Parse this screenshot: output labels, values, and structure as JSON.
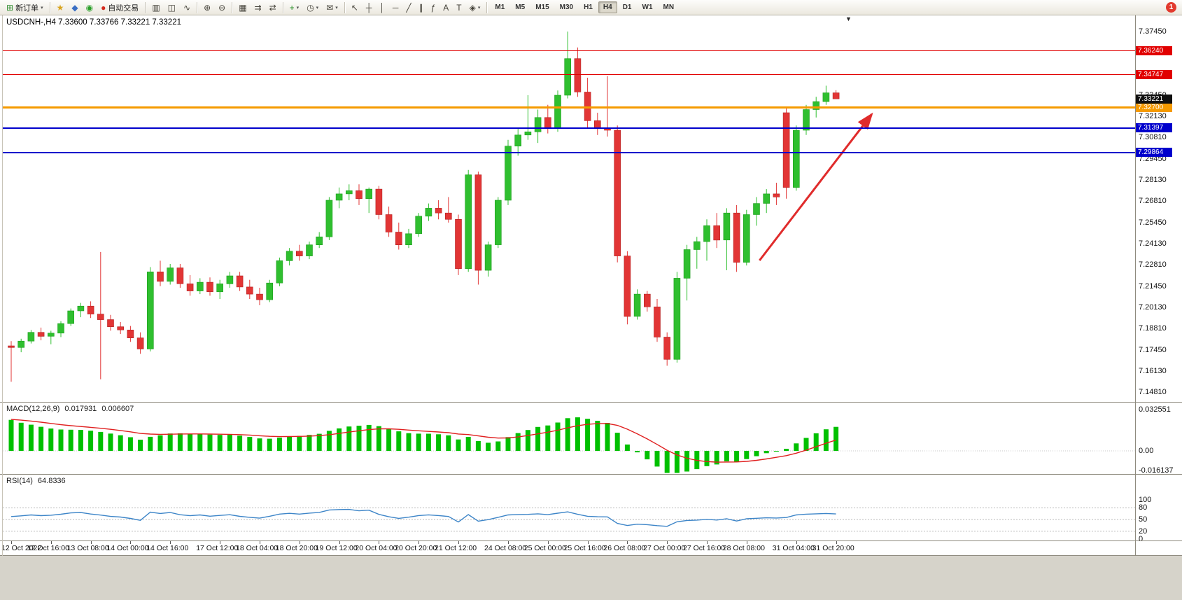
{
  "toolbar": {
    "notification_badge": "1",
    "timeframes": [
      "M1",
      "M5",
      "M15",
      "M30",
      "H1",
      "H4",
      "D1",
      "W1",
      "MN"
    ],
    "active_timeframe": "H4",
    "items": [
      {
        "t": "btn",
        "name": "new-order-button",
        "glyph": "⊞",
        "gc": "#2e8b2e",
        "label": "新订单",
        "dd": true
      },
      {
        "t": "sep"
      },
      {
        "t": "btn",
        "name": "favorites-icon",
        "glyph": "★",
        "gc": "#d9a520"
      },
      {
        "t": "btn",
        "name": "contacts-icon",
        "glyph": "◆",
        "gc": "#3a6fc4"
      },
      {
        "t": "btn",
        "name": "signals-icon",
        "glyph": "◉",
        "gc": "#2aa02a"
      },
      {
        "t": "btn",
        "name": "autotrade-button",
        "glyph": "●",
        "gc": "#d42b1e",
        "label": "自动交易"
      },
      {
        "t": "sep"
      },
      {
        "t": "btn",
        "name": "bar-chart-button",
        "glyph": "▥"
      },
      {
        "t": "btn",
        "name": "candlestick-chart-button",
        "glyph": "◫"
      },
      {
        "t": "btn",
        "name": "line-chart-button",
        "glyph": "∿"
      },
      {
        "t": "sep"
      },
      {
        "t": "btn",
        "name": "zoom-in-button",
        "glyph": "⊕"
      },
      {
        "t": "btn",
        "name": "zoom-out-button",
        "glyph": "⊖"
      },
      {
        "t": "sep"
      },
      {
        "t": "btn",
        "name": "tile-windows-button",
        "glyph": "▦"
      },
      {
        "t": "btn",
        "name": "auto-scroll-button",
        "glyph": "⇉"
      },
      {
        "t": "btn",
        "name": "chart-shift-button",
        "glyph": "⇄"
      },
      {
        "t": "sep"
      },
      {
        "t": "btn",
        "name": "indicators-button",
        "glyph": "+",
        "gc": "#1a8a1a",
        "dd": true
      },
      {
        "t": "btn",
        "name": "periods-button",
        "glyph": "◷",
        "dd": true
      },
      {
        "t": "btn",
        "name": "templates-button",
        "glyph": "✉",
        "dd": true
      },
      {
        "t": "sep"
      },
      {
        "t": "btn",
        "name": "cursor-button",
        "glyph": "↖"
      },
      {
        "t": "btn",
        "name": "crosshair-button",
        "glyph": "┼"
      },
      {
        "t": "btn",
        "name": "vertical-line-button",
        "glyph": "│"
      },
      {
        "t": "btn",
        "name": "horizontal-line-button",
        "glyph": "─"
      },
      {
        "t": "btn",
        "name": "trendline-button",
        "glyph": "╱"
      },
      {
        "t": "btn",
        "name": "channel-button",
        "glyph": "∥"
      },
      {
        "t": "btn",
        "name": "fibonacci-button",
        "glyph": "ƒ"
      },
      {
        "t": "btn",
        "name": "text-button",
        "glyph": "A"
      },
      {
        "t": "btn",
        "name": "label-button",
        "glyph": "T"
      },
      {
        "t": "btn",
        "name": "shapes-button",
        "glyph": "◈",
        "dd": true
      },
      {
        "t": "sep"
      }
    ]
  },
  "chart": {
    "title": "USDCNH-,H4 7.33600 7.33766 7.33221 7.33221",
    "shift_marker": "▼",
    "price_axis_labels": [
      "7.37450",
      "7.36130",
      "7.34810",
      "7.33450",
      "7.32130",
      "7.30810",
      "7.29450",
      "7.28130",
      "7.26810",
      "7.25450",
      "7.24130",
      "7.22810",
      "7.21450",
      "7.20130",
      "7.18810",
      "7.17450",
      "7.16130",
      "7.14810"
    ],
    "hlines": [
      {
        "price": 7.3624,
        "label": "7.36240",
        "color": "#e10000",
        "width": 1
      },
      {
        "price": 7.34747,
        "label": "7.34747",
        "color": "#e10000",
        "width": 1
      },
      {
        "price": 7.327,
        "label": "7.32700",
        "color": "#f59a00",
        "width": 3
      },
      {
        "price": 7.31397,
        "label": "7.31397",
        "color": "#0000cc",
        "width": 2
      },
      {
        "price": 7.29864,
        "label": "7.29864",
        "color": "#0000cc",
        "width": 2
      }
    ],
    "current_price": {
      "label": "7.33221",
      "value": 7.33221,
      "badge_color": "#101010"
    }
  },
  "macd_panel": {
    "title": "MACD(12,26,9)",
    "value_main": "0.017931",
    "value_signal": "0.006607",
    "scale": [
      "0.032551",
      "0.00",
      "-0.016137"
    ],
    "histogram_color": "#00c000",
    "signal_color": "#e02020"
  },
  "rsi_panel": {
    "title": "RSI(14)",
    "value": "64.8336",
    "scale": [
      "100",
      "80",
      "50",
      "20",
      "0"
    ],
    "levels": [
      80,
      50,
      20
    ],
    "line_color": "#3d85c8"
  },
  "chart_data": {
    "type": "candlestick",
    "symbol": "USDCNH-",
    "timeframe": "H4",
    "last_ohlc": {
      "open": 7.336,
      "high": 7.33766,
      "low": 7.33221,
      "close": 7.33221
    },
    "price_min": 7.1481,
    "price_max": 7.3745,
    "up_color": "#2fbf2f",
    "down_color": "#e23535",
    "candles": [
      [
        7.177,
        7.18,
        7.1545,
        7.176
      ],
      [
        7.176,
        7.1815,
        7.173,
        7.18
      ],
      [
        7.18,
        7.187,
        7.1785,
        7.1855
      ],
      [
        7.1855,
        7.1885,
        7.1805,
        7.183
      ],
      [
        7.183,
        7.1865,
        7.178,
        7.185
      ],
      [
        7.185,
        7.1925,
        7.1825,
        7.191
      ],
      [
        7.191,
        7.2005,
        7.1895,
        7.199
      ],
      [
        7.199,
        7.204,
        7.195,
        7.202
      ],
      [
        7.202,
        7.205,
        7.1945,
        7.197
      ],
      [
        7.197,
        7.236,
        7.156,
        7.1935
      ],
      [
        7.1935,
        7.1965,
        7.1865,
        7.189
      ],
      [
        7.189,
        7.192,
        7.1845,
        7.187
      ],
      [
        7.187,
        7.1895,
        7.1795,
        7.182
      ],
      [
        7.182,
        7.1855,
        7.172,
        7.175
      ],
      [
        7.175,
        7.2265,
        7.1735,
        7.2235
      ],
      [
        7.2235,
        7.2305,
        7.2145,
        7.2175
      ],
      [
        7.2175,
        7.2285,
        7.2155,
        7.226
      ],
      [
        7.226,
        7.2285,
        7.2135,
        7.216
      ],
      [
        7.216,
        7.2215,
        7.2085,
        7.2115
      ],
      [
        7.2115,
        7.2195,
        7.2095,
        7.217
      ],
      [
        7.217,
        7.22,
        7.2085,
        7.211
      ],
      [
        7.211,
        7.2185,
        7.2065,
        7.216
      ],
      [
        7.216,
        7.2235,
        7.2135,
        7.221
      ],
      [
        7.221,
        7.2235,
        7.2115,
        7.214
      ],
      [
        7.214,
        7.2185,
        7.2065,
        7.2095
      ],
      [
        7.2095,
        7.2135,
        7.2025,
        7.206
      ],
      [
        7.206,
        7.2185,
        7.2045,
        7.2165
      ],
      [
        7.2165,
        7.2325,
        7.2145,
        7.2305
      ],
      [
        7.2305,
        7.2385,
        7.2275,
        7.2365
      ],
      [
        7.2365,
        7.2405,
        7.2305,
        7.2335
      ],
      [
        7.2335,
        7.2425,
        7.2315,
        7.2405
      ],
      [
        7.2405,
        7.2485,
        7.2385,
        7.2455
      ],
      [
        7.2455,
        7.2705,
        7.2435,
        7.2685
      ],
      [
        7.2685,
        7.2765,
        7.2635,
        7.2725
      ],
      [
        7.2725,
        7.2785,
        7.2685,
        7.2745
      ],
      [
        7.2745,
        7.2785,
        7.2655,
        7.2695
      ],
      [
        7.2695,
        7.2765,
        7.2605,
        7.2755
      ],
      [
        7.2755,
        7.2775,
        7.2565,
        7.2595
      ],
      [
        7.2595,
        7.2645,
        7.2455,
        7.2485
      ],
      [
        7.2485,
        7.2545,
        7.2375,
        7.2405
      ],
      [
        7.2405,
        7.2505,
        7.2385,
        7.2475
      ],
      [
        7.2475,
        7.2605,
        7.2455,
        7.2585
      ],
      [
        7.2585,
        7.2665,
        7.2555,
        7.2635
      ],
      [
        7.2635,
        7.2685,
        7.2565,
        7.2605
      ],
      [
        7.2605,
        7.2705,
        7.2545,
        7.2565
      ],
      [
        7.2565,
        7.2595,
        7.2215,
        7.2255
      ],
      [
        7.2255,
        7.2875,
        7.2235,
        7.2845
      ],
      [
        7.2845,
        7.2865,
        7.2155,
        7.2245
      ],
      [
        7.2245,
        7.2425,
        7.2205,
        7.2405
      ],
      [
        7.2405,
        7.2705,
        7.2385,
        7.2685
      ],
      [
        7.2685,
        7.3065,
        7.2655,
        7.3025
      ],
      [
        7.3025,
        7.3135,
        7.2965,
        7.3095
      ],
      [
        7.3095,
        7.3345,
        7.3065,
        7.3115
      ],
      [
        7.3115,
        7.3255,
        7.3045,
        7.3205
      ],
      [
        7.3205,
        7.3285,
        7.3105,
        7.3135
      ],
      [
        7.3135,
        7.3375,
        7.3115,
        7.3345
      ],
      [
        7.3345,
        7.3745,
        7.3325,
        7.3575
      ],
      [
        7.3575,
        7.3645,
        7.3335,
        7.3365
      ],
      [
        7.3365,
        7.3455,
        7.3135,
        7.3185
      ],
      [
        7.3185,
        7.3235,
        7.3095,
        7.3135
      ],
      [
        7.3135,
        7.3465,
        7.3085,
        7.3125
      ],
      [
        7.3125,
        7.3155,
        7.2295,
        7.2335
      ],
      [
        7.2335,
        7.2365,
        7.1905,
        7.1955
      ],
      [
        7.1955,
        7.2125,
        7.1935,
        7.2095
      ],
      [
        7.2095,
        7.2115,
        7.1985,
        7.2015
      ],
      [
        7.2015,
        7.2065,
        7.1795,
        7.1825
      ],
      [
        7.1825,
        7.1855,
        7.1645,
        7.1685
      ],
      [
        7.1685,
        7.2235,
        7.1665,
        7.2195
      ],
      [
        7.2195,
        7.2405,
        7.2055,
        7.2375
      ],
      [
        7.2375,
        7.2455,
        7.2255,
        7.2425
      ],
      [
        7.2425,
        7.2565,
        7.2305,
        7.2525
      ],
      [
        7.2525,
        7.2605,
        7.2385,
        7.2435
      ],
      [
        7.2435,
        7.2635,
        7.2245,
        7.2605
      ],
      [
        7.2605,
        7.2655,
        7.2235,
        7.2295
      ],
      [
        7.2295,
        7.2625,
        7.2275,
        7.2595
      ],
      [
        7.2595,
        7.2705,
        7.2525,
        7.2665
      ],
      [
        7.2665,
        7.2755,
        7.2605,
        7.2725
      ],
      [
        7.2725,
        7.2795,
        7.2655,
        7.2705
      ],
      [
        7.3235,
        7.3265,
        7.2695,
        7.2765
      ],
      [
        7.2765,
        7.3155,
        7.2745,
        7.3125
      ],
      [
        7.3125,
        7.3285,
        7.3095,
        7.3255
      ],
      [
        7.3255,
        7.3335,
        7.3205,
        7.3305
      ],
      [
        7.3305,
        7.3405,
        7.3285,
        7.336
      ],
      [
        7.336,
        7.33766,
        7.33221,
        7.33221
      ]
    ],
    "time_labels": [
      {
        "i": 0,
        "t": "12 Oct 2022"
      },
      {
        "i": 4,
        "t": "12 Oct 16:00"
      },
      {
        "i": 8,
        "t": "13 Oct 08:00"
      },
      {
        "i": 12,
        "t": "14 Oct 00:00"
      },
      {
        "i": 16,
        "t": "14 Oct 16:00"
      },
      {
        "i": 21,
        "t": "17 Oct 12:00"
      },
      {
        "i": 25,
        "t": "18 Oct 04:00"
      },
      {
        "i": 29,
        "t": "18 Oct 20:00"
      },
      {
        "i": 33,
        "t": "19 Oct 12:00"
      },
      {
        "i": 37,
        "t": "20 Oct 04:00"
      },
      {
        "i": 41,
        "t": "20 Oct 20:00"
      },
      {
        "i": 45,
        "t": "21 Oct 12:00"
      },
      {
        "i": 50,
        "t": "24 Oct 08:00"
      },
      {
        "i": 54,
        "t": "25 Oct 00:00"
      },
      {
        "i": 58,
        "t": "25 Oct 16:00"
      },
      {
        "i": 62,
        "t": "26 Oct 08:00"
      },
      {
        "i": 66,
        "t": "27 Oct 00:00"
      },
      {
        "i": 70,
        "t": "27 Oct 16:00"
      },
      {
        "i": 74,
        "t": "28 Oct 08:00"
      },
      {
        "i": 79,
        "t": "31 Oct 04:00"
      },
      {
        "i": 83,
        "t": "31 Oct 20:00"
      }
    ],
    "arrow": {
      "from_index": 75.3,
      "from_price": 7.2307,
      "to_index": 86.6,
      "to_price": 7.3226,
      "color": "#e02b2b"
    },
    "indicators": {
      "macd": {
        "fast": 12,
        "slow": 26,
        "signal": 9,
        "current_main": 0.017931,
        "current_signal": 0.006607
      },
      "rsi": {
        "period": 14,
        "current": 64.8336
      }
    }
  }
}
